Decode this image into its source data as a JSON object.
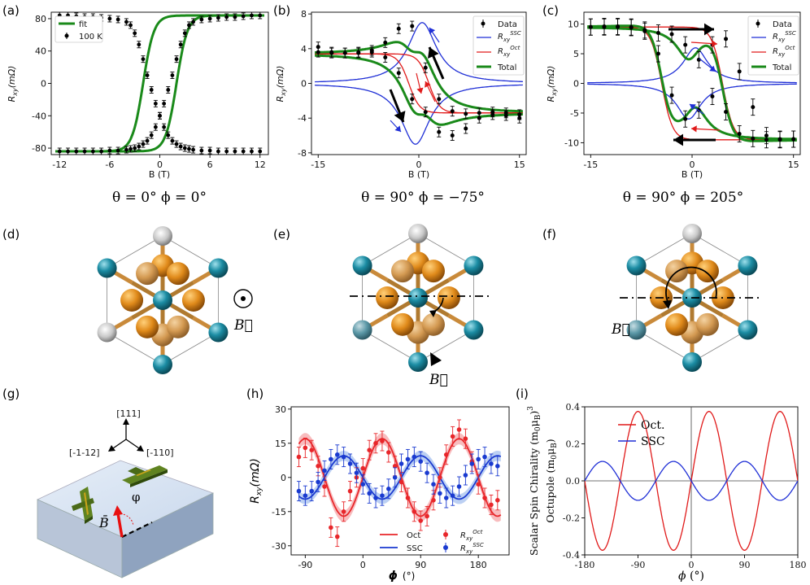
{
  "panel_labels": [
    "(a)",
    "(b)",
    "(c)",
    "(d)",
    "(e)",
    "(f)",
    "(g)",
    "(h)",
    "(i)"
  ],
  "captions": {
    "a": "θ = 0°  ϕ = 0°",
    "b": "θ = 90°  ϕ = −75°",
    "c": "θ = 90°  ϕ = 205°"
  },
  "colors": {
    "fit": "#1a8a1a",
    "data": "#000000",
    "ssc": "#1f2fd6",
    "oct": "#e01a1a",
    "total": "#1a8a1a",
    "oct_h": "#e8262a",
    "ssc_h": "#1a3ad0"
  },
  "panel_d": {
    "field_label": "B⃗"
  },
  "panel_e": {
    "field_label": "B⃗"
  },
  "panel_f": {
    "field_label": "B⃗"
  },
  "panel_g": {
    "dir_111": "[111]",
    "dir_m1m12": "[-1-12]",
    "dir_m110": "[-110]",
    "field_label": "B̄",
    "angle_label": "φ"
  },
  "chart_data": [
    {
      "id": "a",
      "type": "line",
      "title": "",
      "xlabel": "B (T)",
      "ylabel": "R_xy(mΩ)",
      "xlim": [
        -13,
        13
      ],
      "ylim": [
        -88,
        88
      ],
      "xticks": [
        "-12",
        "-6",
        "0",
        "6",
        "12"
      ],
      "yticks": [
        "-80",
        "-40",
        "0",
        "40",
        "80"
      ],
      "legend": [
        "fit",
        "100 K"
      ],
      "series": [
        {
          "name": "fit",
          "style": "line",
          "model": "tanh",
          "amplitude": 84,
          "coercive_field": 2.0,
          "width": 1.3
        },
        {
          "name": "100 K",
          "style": "points",
          "x": [
            -12,
            -11,
            -10,
            -9,
            -8,
            -7,
            -6,
            -5,
            -4,
            -3.5,
            -3,
            -2.5,
            -2,
            -1.5,
            -1,
            -0.5,
            0,
            0.5,
            1,
            1.5,
            2,
            2.5,
            3,
            3.5,
            4,
            5,
            6,
            7,
            8,
            9,
            10,
            11,
            12
          ],
          "y_down": [
            84,
            84,
            83,
            82,
            82,
            81,
            80,
            79,
            76,
            72,
            62,
            48,
            30,
            10,
            -8,
            -25,
            -40,
            -54,
            -64,
            -71,
            -75,
            -78,
            -80,
            -81,
            -82,
            -83,
            -83,
            -84,
            -84,
            -84,
            -84,
            -84,
            -84
          ],
          "y_up": [
            -84,
            -84,
            -84,
            -84,
            -84,
            -84,
            -83,
            -83,
            -82,
            -81,
            -80,
            -78,
            -75,
            -71,
            -64,
            -54,
            -40,
            -25,
            -8,
            10,
            30,
            48,
            62,
            72,
            76,
            79,
            80,
            81,
            82,
            82,
            83,
            84,
            84
          ]
        }
      ]
    },
    {
      "id": "b",
      "type": "line",
      "title": "",
      "xlabel": "B (T)",
      "ylabel": "R_xy(mΩ)",
      "xlim": [
        -16,
        16
      ],
      "ylim": [
        -8.2,
        8.2
      ],
      "xticks": [
        "-15",
        "0",
        "15"
      ],
      "yticks": [
        "-8",
        "-4",
        "0",
        "4",
        "8"
      ],
      "legend": [
        "Data",
        "R_xy^SSC",
        "R_xy^Oct",
        "Total"
      ],
      "series": [
        {
          "name": "Data",
          "style": "points",
          "x": [
            -15,
            -13,
            -11,
            -9,
            -7,
            -5,
            -3,
            -1,
            1,
            3,
            5,
            7,
            9,
            11,
            13,
            15
          ],
          "y_sweep_up": [
            3.6,
            3.5,
            3.5,
            3.5,
            3.6,
            3.0,
            1.2,
            -1.8,
            -3.3,
            -5.6,
            -6.0,
            -5.2,
            -4.0,
            -3.6,
            -3.7,
            -4.0
          ],
          "y_sweep_down": [
            4.2,
            3.6,
            3.5,
            3.6,
            3.8,
            4.7,
            6.3,
            6.6,
            1.8,
            -1.8,
            -3.2,
            -3.5,
            -3.4,
            -3.3,
            -3.4,
            -3.6
          ]
        },
        {
          "name": "R_xy^SSC",
          "style": "line",
          "model": "lorentz_peak",
          "amplitude": 7,
          "center": 0.5
        },
        {
          "name": "R_xy^Oct",
          "style": "line",
          "model": "hysteresis",
          "amplitude": 3.4,
          "coercive_field": 1.5
        },
        {
          "name": "Total",
          "style": "line",
          "model": "sum"
        }
      ]
    },
    {
      "id": "c",
      "type": "line",
      "title": "",
      "xlabel": "B (T)",
      "ylabel": "R_xy(mΩ)",
      "xlim": [
        -16,
        16
      ],
      "ylim": [
        -12,
        12
      ],
      "xticks": [
        "-15",
        "0",
        "15"
      ],
      "yticks": [
        "-10",
        "-5",
        "0",
        "5",
        "10"
      ],
      "legend": [
        "Data",
        "R_xy^SSC",
        "R_xy^Oct",
        "Total"
      ],
      "series": [
        {
          "name": "Data",
          "style": "points",
          "x": [
            -15,
            -13,
            -11,
            -9,
            -7,
            -5,
            -3,
            -1,
            1,
            3,
            5,
            7,
            9,
            11,
            13,
            15
          ],
          "y_sweep_up": [
            9.5,
            9.6,
            9.6,
            9.5,
            8.8,
            5.0,
            -2.0,
            -6.0,
            -4.5,
            -2.2,
            -4.8,
            -8.5,
            -9.3,
            -9.5,
            -9.4,
            -9.4
          ],
          "y_sweep_down": [
            9.5,
            9.5,
            9.5,
            9.4,
            9.0,
            8.5,
            8.3,
            6.5,
            4.0,
            6.5,
            7.5,
            2.0,
            -4.0,
            -8.8,
            -9.5,
            -9.4
          ]
        },
        {
          "name": "R_xy^SSC",
          "style": "line",
          "model": "lorentz_peak",
          "amplitude": 6,
          "center": 0
        },
        {
          "name": "R_xy^Oct",
          "style": "line",
          "model": "hysteresis",
          "amplitude": 9.5,
          "coercive_field": 4.5
        },
        {
          "name": "Total",
          "style": "line",
          "model": "sum"
        }
      ]
    },
    {
      "id": "h",
      "type": "line",
      "title": "",
      "xlabel": "ϕ (°)",
      "ylabel": "R_xy(mΩ)",
      "xlim": [
        -112,
        228
      ],
      "ylim": [
        -34,
        31
      ],
      "xticks": [
        "-90",
        "0",
        "90",
        "180"
      ],
      "yticks": [
        "-30",
        "-15",
        "0",
        "15",
        "30"
      ],
      "legend": [
        "Oct",
        "SSC",
        "R_xy^Oct",
        "R_xy^SSC"
      ],
      "series": [
        {
          "name": "Oct",
          "style": "line",
          "model": "sin3",
          "amplitude": 17,
          "phase_deg": 0
        },
        {
          "name": "SSC",
          "style": "line",
          "model": "sin3",
          "amplitude": 9.5,
          "phase_deg": 180
        },
        {
          "name": "R_xy^Oct",
          "style": "points",
          "x": [
            -100,
            -90,
            -80,
            -70,
            -60,
            -50,
            -40,
            -30,
            -20,
            -10,
            0,
            10,
            20,
            30,
            40,
            50,
            60,
            70,
            80,
            90,
            100,
            110,
            120,
            130,
            140,
            150,
            160,
            170,
            180,
            190,
            200,
            210
          ],
          "y": [
            9,
            13,
            12,
            5,
            -4,
            -22,
            -26,
            -15,
            -6,
            0,
            4,
            12,
            15,
            16,
            11,
            5,
            -2,
            -9,
            -15,
            -19,
            -17,
            -10,
            0,
            10,
            18,
            21,
            17,
            7,
            -3,
            -9,
            -12,
            -10
          ]
        },
        {
          "name": "R_xy^SSC",
          "style": "points",
          "x": [
            -100,
            -90,
            -80,
            -70,
            -60,
            -50,
            -40,
            -30,
            -20,
            -10,
            0,
            10,
            20,
            30,
            40,
            50,
            60,
            70,
            80,
            90,
            100,
            110,
            120,
            130,
            140,
            150,
            160,
            170,
            180,
            190,
            200,
            210
          ],
          "y": [
            -6,
            -8,
            -6,
            -2,
            3,
            8,
            10,
            9,
            6,
            2,
            -3,
            -7,
            -9,
            -8,
            -5,
            0,
            6,
            8,
            9,
            7,
            2,
            -3,
            -7,
            -9,
            -8,
            -4,
            1,
            6,
            8,
            9,
            6,
            5
          ]
        }
      ]
    },
    {
      "id": "i",
      "type": "line",
      "title": "",
      "xlabel": "ϕ (°)",
      "ylabel": "Scalar Spin Chirality (m0μB)^3 / Octupole (m0μB)",
      "xlim": [
        -180,
        180
      ],
      "ylim": [
        -0.4,
        0.4
      ],
      "xticks": [
        "-180",
        "-90",
        "0",
        "90",
        "180"
      ],
      "yticks": [
        "-0.4",
        "-0.2",
        "0.0",
        "0.2",
        "0.4"
      ],
      "legend": [
        "Oct.",
        "SSC"
      ],
      "series": [
        {
          "name": "Oct.",
          "style": "line",
          "model": "sin3",
          "amplitude": 0.375,
          "phase_deg": 0
        },
        {
          "name": "SSC",
          "style": "line",
          "model": "sin3",
          "amplitude": 0.105,
          "phase_deg": 180
        }
      ]
    }
  ]
}
